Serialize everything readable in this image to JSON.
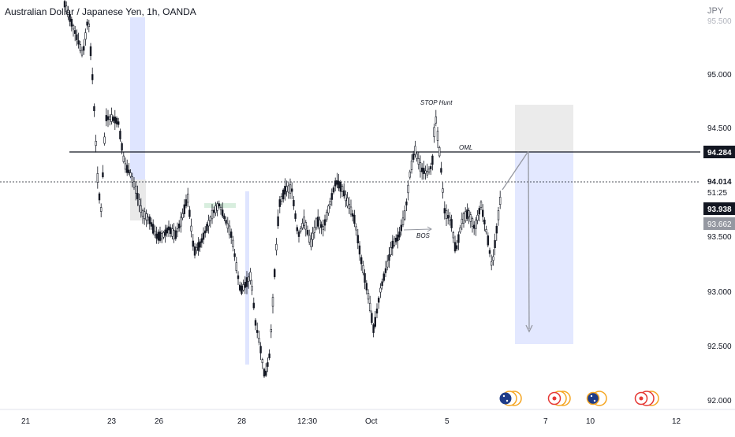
{
  "header": {
    "symbol_title": "Australian Dollar / Japanese Yen, 1h, OANDA",
    "currency": "JPY"
  },
  "price_axis": {
    "ticks": [
      "95.000",
      "94.500",
      "93.500",
      "93.000",
      "92.500",
      "92.000"
    ],
    "top_partial": "95.500",
    "badges": [
      {
        "label": "94.284",
        "style": "dark"
      },
      {
        "label": "94.014",
        "style": "white"
      },
      {
        "label": "51:25",
        "style": "white"
      },
      {
        "label": "93.938",
        "style": "dark"
      },
      {
        "label": "93.662",
        "style": "gray"
      }
    ]
  },
  "time_axis": {
    "ticks": [
      "21",
      "23",
      "26",
      "28",
      "12:30",
      "Oct",
      "5",
      "7",
      "10",
      "12"
    ]
  },
  "annotations": {
    "stop_hunt": "STOP Hunt",
    "oml": "OML",
    "bos": "BOS"
  },
  "colors": {
    "candle": "#131722",
    "highlight_zone": "#dfe5ff",
    "target_zone": "#e3e8ff",
    "stop_zone": "#ebebeb",
    "line": "#131722",
    "axis_text": "#131722",
    "event_red": "#e53935",
    "event_orange": "#f5a623"
  },
  "event_icons": [
    "au-flag-icon",
    "au-flag-icon",
    "event-icon",
    "event-icon",
    "au-flag-icon",
    "event-icon",
    "event-icon"
  ]
}
